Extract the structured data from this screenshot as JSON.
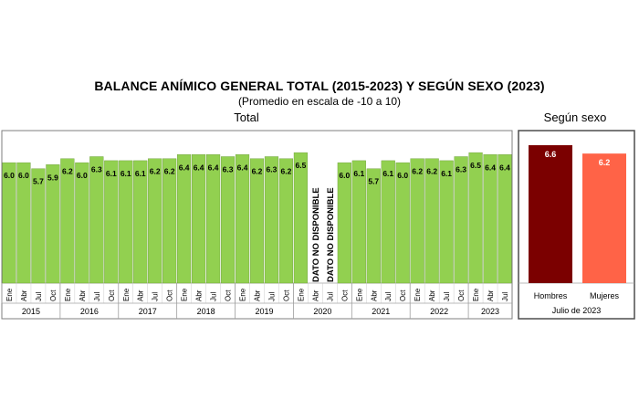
{
  "header": {
    "title": "BALANCE ANÍMICO GENERAL TOTAL (2015-2023) Y SEGÚN SEXO (2023)",
    "subtitle": "(Promedio en escala de -10 a 10)"
  },
  "chart_data": [
    {
      "type": "bar",
      "title": "Total",
      "colors": {
        "bar": "#92D050",
        "bar_border": "#6a9a38",
        "grid_frame": "#7f7f7f"
      },
      "categories": [
        "Ene",
        "Abr",
        "Jul",
        "Oct",
        "Ene",
        "Abr",
        "Jul",
        "Oct",
        "Ene",
        "Abr",
        "Jul",
        "Oct",
        "Ene",
        "Abr",
        "Jul",
        "Oct",
        "Ene",
        "Abr",
        "Jul",
        "Oct",
        "Ene",
        "Abr",
        "Jul",
        "Oct",
        "Ene",
        "Abr",
        "Jul",
        "Oct",
        "Ene",
        "Abr",
        "Jul",
        "Oct",
        "Ene",
        "Abr",
        "Jul"
      ],
      "years": [
        {
          "label": "2015",
          "count": 4
        },
        {
          "label": "2016",
          "count": 4
        },
        {
          "label": "2017",
          "count": 4
        },
        {
          "label": "2018",
          "count": 4
        },
        {
          "label": "2019",
          "count": 4
        },
        {
          "label": "2020",
          "count": 4
        },
        {
          "label": "2021",
          "count": 4
        },
        {
          "label": "2022",
          "count": 4
        },
        {
          "label": "2023",
          "count": 3
        }
      ],
      "values": [
        6.0,
        6.0,
        5.7,
        5.9,
        6.2,
        6.0,
        6.3,
        6.1,
        6.1,
        6.1,
        6.2,
        6.2,
        6.4,
        6.4,
        6.4,
        6.3,
        6.4,
        6.2,
        6.3,
        6.2,
        6.5,
        null,
        null,
        6.0,
        6.1,
        5.7,
        6.1,
        6.0,
        6.2,
        6.2,
        6.1,
        6.3,
        6.5,
        6.4,
        6.4
      ],
      "data_labels": [
        "6.0",
        "6.0",
        "5.7",
        "5.9",
        "6.2",
        "6.0",
        "6.3",
        "6.1",
        "6.1",
        "6.1",
        "6.2",
        "6.2",
        "6.4",
        "6.4",
        "6.4",
        "6.3",
        "6.4",
        "6.2",
        "6.3",
        "6.2",
        "6.5",
        "",
        "",
        "6.0",
        "6.1",
        "5.7",
        "6.1",
        "6.0",
        "6.2",
        "6.2",
        "6.1",
        "6.3",
        "6.5",
        "6.4",
        "6.4"
      ],
      "missing_label": "DATO NO DISPONIBLE",
      "grid": false
    },
    {
      "type": "bar",
      "title": "Según sexo",
      "categories": [
        "Hombres",
        "Mujeres"
      ],
      "values": [
        6.6,
        6.2
      ],
      "data_labels": [
        "6.6",
        "6.2"
      ],
      "colors": [
        "#7B0000",
        "#FF6347"
      ],
      "xlabel": "Julio de 2023",
      "grid": false
    }
  ]
}
